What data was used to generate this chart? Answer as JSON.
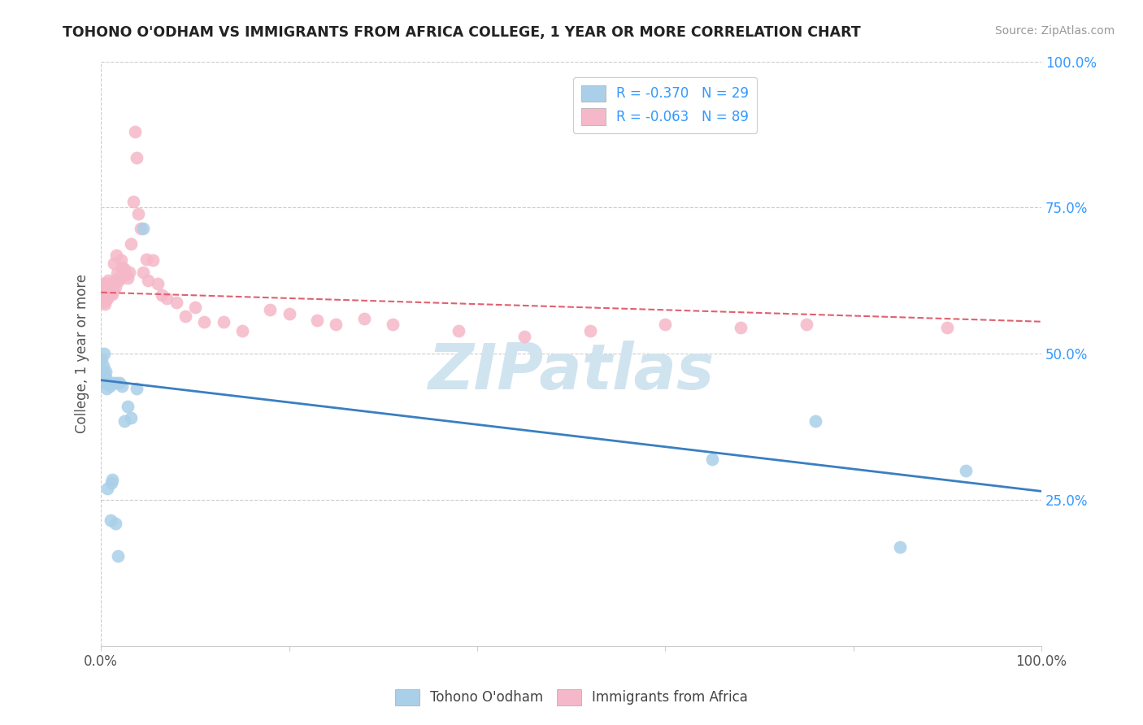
{
  "title": "TOHONO O'ODHAM VS IMMIGRANTS FROM AFRICA COLLEGE, 1 YEAR OR MORE CORRELATION CHART",
  "source": "Source: ZipAtlas.com",
  "ylabel": "College, 1 year or more",
  "ylabel_right_ticks": [
    "100.0%",
    "75.0%",
    "50.0%",
    "25.0%"
  ],
  "ylabel_right_vals": [
    1.0,
    0.75,
    0.5,
    0.25
  ],
  "legend_blue_r": "R = -0.370",
  "legend_blue_n": "N = 29",
  "legend_pink_r": "R = -0.063",
  "legend_pink_n": "N = 89",
  "blue_color": "#aacfe8",
  "pink_color": "#f5b8c8",
  "blue_line_color": "#3a7fc1",
  "pink_line_color": "#e06070",
  "watermark": "ZIPatlas",
  "watermark_color": "#d0e4f0",
  "blue_line_x0": 0.0,
  "blue_line_y0": 0.455,
  "blue_line_x1": 1.0,
  "blue_line_y1": 0.265,
  "pink_line_x0": 0.0,
  "pink_line_y0": 0.605,
  "pink_line_x1": 1.0,
  "pink_line_y1": 0.555,
  "blue_points_x": [
    0.001,
    0.002,
    0.003,
    0.003,
    0.004,
    0.005,
    0.005,
    0.006,
    0.007,
    0.008,
    0.009,
    0.01,
    0.011,
    0.012,
    0.013,
    0.015,
    0.016,
    0.018,
    0.02,
    0.022,
    0.025,
    0.028,
    0.032,
    0.038,
    0.045,
    0.65,
    0.76,
    0.85,
    0.92
  ],
  "blue_points_y": [
    0.49,
    0.48,
    0.465,
    0.5,
    0.45,
    0.46,
    0.47,
    0.44,
    0.27,
    0.45,
    0.445,
    0.215,
    0.28,
    0.285,
    0.45,
    0.21,
    0.45,
    0.155,
    0.45,
    0.445,
    0.385,
    0.41,
    0.39,
    0.44,
    0.715,
    0.32,
    0.385,
    0.17,
    0.3
  ],
  "pink_points_x": [
    0.001,
    0.001,
    0.001,
    0.001,
    0.002,
    0.002,
    0.002,
    0.002,
    0.002,
    0.003,
    0.003,
    0.003,
    0.003,
    0.003,
    0.004,
    0.004,
    0.004,
    0.004,
    0.005,
    0.005,
    0.005,
    0.006,
    0.006,
    0.006,
    0.007,
    0.007,
    0.007,
    0.008,
    0.008,
    0.008,
    0.009,
    0.009,
    0.01,
    0.01,
    0.011,
    0.011,
    0.012,
    0.012,
    0.013,
    0.013,
    0.014,
    0.015,
    0.015,
    0.016,
    0.017,
    0.018,
    0.019,
    0.02,
    0.021,
    0.022,
    0.023,
    0.024,
    0.025,
    0.026,
    0.027,
    0.028,
    0.03,
    0.032,
    0.034,
    0.036,
    0.038,
    0.04,
    0.042,
    0.045,
    0.048,
    0.05,
    0.055,
    0.06,
    0.065,
    0.07,
    0.08,
    0.09,
    0.1,
    0.11,
    0.13,
    0.15,
    0.18,
    0.2,
    0.23,
    0.25,
    0.28,
    0.31,
    0.38,
    0.45,
    0.52,
    0.6,
    0.68,
    0.75,
    0.9
  ],
  "pink_points_y": [
    0.62,
    0.615,
    0.605,
    0.6,
    0.615,
    0.61,
    0.605,
    0.6,
    0.595,
    0.615,
    0.61,
    0.6,
    0.595,
    0.59,
    0.615,
    0.605,
    0.595,
    0.585,
    0.62,
    0.61,
    0.6,
    0.615,
    0.605,
    0.595,
    0.615,
    0.605,
    0.595,
    0.625,
    0.615,
    0.605,
    0.62,
    0.61,
    0.618,
    0.608,
    0.615,
    0.605,
    0.612,
    0.602,
    0.618,
    0.61,
    0.655,
    0.625,
    0.615,
    0.668,
    0.638,
    0.628,
    0.625,
    0.63,
    0.66,
    0.648,
    0.64,
    0.635,
    0.645,
    0.638,
    0.635,
    0.63,
    0.64,
    0.688,
    0.76,
    0.88,
    0.835,
    0.74,
    0.715,
    0.64,
    0.662,
    0.625,
    0.66,
    0.62,
    0.6,
    0.595,
    0.588,
    0.565,
    0.58,
    0.555,
    0.555,
    0.54,
    0.575,
    0.568,
    0.558,
    0.55,
    0.56,
    0.55,
    0.54,
    0.53,
    0.54,
    0.55,
    0.545,
    0.55,
    0.545
  ],
  "xlim": [
    0.0,
    1.0
  ],
  "ylim": [
    0.0,
    1.0
  ]
}
